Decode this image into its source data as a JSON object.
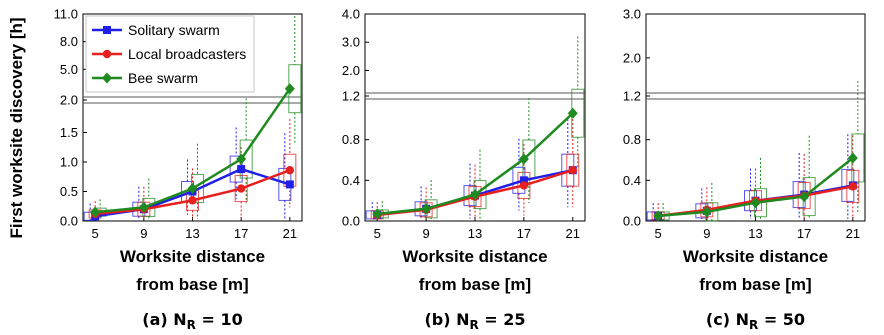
{
  "figure": {
    "ylabel": "First worksite discovery [h]"
  },
  "legend": [
    {
      "name": "Solitary swarm",
      "color": "#1f1fe6",
      "marker": "square"
    },
    {
      "name": "Local broadcasters",
      "color": "#e61f1f",
      "marker": "circle"
    },
    {
      "name": "Bee swarm",
      "color": "#1f8a1f",
      "marker": "diamond"
    }
  ],
  "chart_data": [
    {
      "type": "line",
      "caption_prefix": "(a) N",
      "caption_sub": "R",
      "caption_suffix": " = 10",
      "xlabel_line1": "Worksite distance",
      "xlabel_line2": "from base [m]",
      "x": [
        5,
        9,
        13,
        17,
        21
      ],
      "x_tick_labels": [
        "5",
        "9",
        "13",
        "17",
        "21"
      ],
      "axis_break": true,
      "lower_ylim": [
        0,
        2.0
      ],
      "upper_ylim": [
        2.0,
        11.0
      ],
      "lower_ticks": [
        "0.0",
        "0.5",
        "1.0",
        "1.5",
        "2.0"
      ],
      "upper_ticks": [
        "5.0",
        "8.0",
        "11.0"
      ],
      "series": [
        {
          "name": "Solitary swarm",
          "values": [
            0.08,
            0.2,
            0.5,
            0.88,
            0.62
          ]
        },
        {
          "name": "Local broadcasters",
          "values": [
            0.12,
            0.2,
            0.35,
            0.55,
            0.86
          ]
        },
        {
          "name": "Bee swarm",
          "values": [
            0.15,
            0.23,
            0.55,
            1.05,
            2.9
          ]
        }
      ]
    },
    {
      "type": "line",
      "caption_prefix": "(b) N",
      "caption_sub": "R",
      "caption_suffix": " = 25",
      "xlabel_line1": "Worksite distance",
      "xlabel_line2": "from base [m]",
      "x": [
        5,
        9,
        13,
        17,
        21
      ],
      "x_tick_labels": [
        "5",
        "9",
        "13",
        "17",
        "21"
      ],
      "axis_break": true,
      "lower_ylim": [
        0,
        1.2
      ],
      "upper_ylim": [
        1.2,
        4.0
      ],
      "lower_ticks": [
        "0.0",
        "0.4",
        "0.8",
        "1.2"
      ],
      "upper_ticks": [
        "2.0",
        "3.0",
        "4.0"
      ],
      "series": [
        {
          "name": "Solitary swarm",
          "values": [
            0.06,
            0.12,
            0.25,
            0.4,
            0.5
          ]
        },
        {
          "name": "Local broadcasters",
          "values": [
            0.06,
            0.11,
            0.24,
            0.35,
            0.5
          ]
        },
        {
          "name": "Bee swarm",
          "values": [
            0.07,
            0.12,
            0.26,
            0.61,
            1.06
          ]
        }
      ]
    },
    {
      "type": "line",
      "caption_prefix": "(c) N",
      "caption_sub": "R",
      "caption_suffix": " = 50",
      "xlabel_line1": "Worksite distance",
      "xlabel_line2": "from base [m]",
      "x": [
        5,
        9,
        13,
        17,
        21
      ],
      "x_tick_labels": [
        "5",
        "9",
        "13",
        "17",
        "21"
      ],
      "axis_break": true,
      "lower_ylim": [
        0,
        1.2
      ],
      "upper_ylim": [
        1.2,
        3.0
      ],
      "lower_ticks": [
        "0.0",
        "0.4",
        "0.8",
        "1.2"
      ],
      "upper_ticks": [
        "2.0",
        "3.0"
      ],
      "series": [
        {
          "name": "Solitary swarm",
          "values": [
            0.05,
            0.1,
            0.2,
            0.26,
            0.35
          ]
        },
        {
          "name": "Local broadcasters",
          "values": [
            0.05,
            0.11,
            0.2,
            0.25,
            0.34
          ]
        },
        {
          "name": "Bee swarm",
          "values": [
            0.05,
            0.09,
            0.18,
            0.24,
            0.62
          ]
        }
      ]
    }
  ]
}
